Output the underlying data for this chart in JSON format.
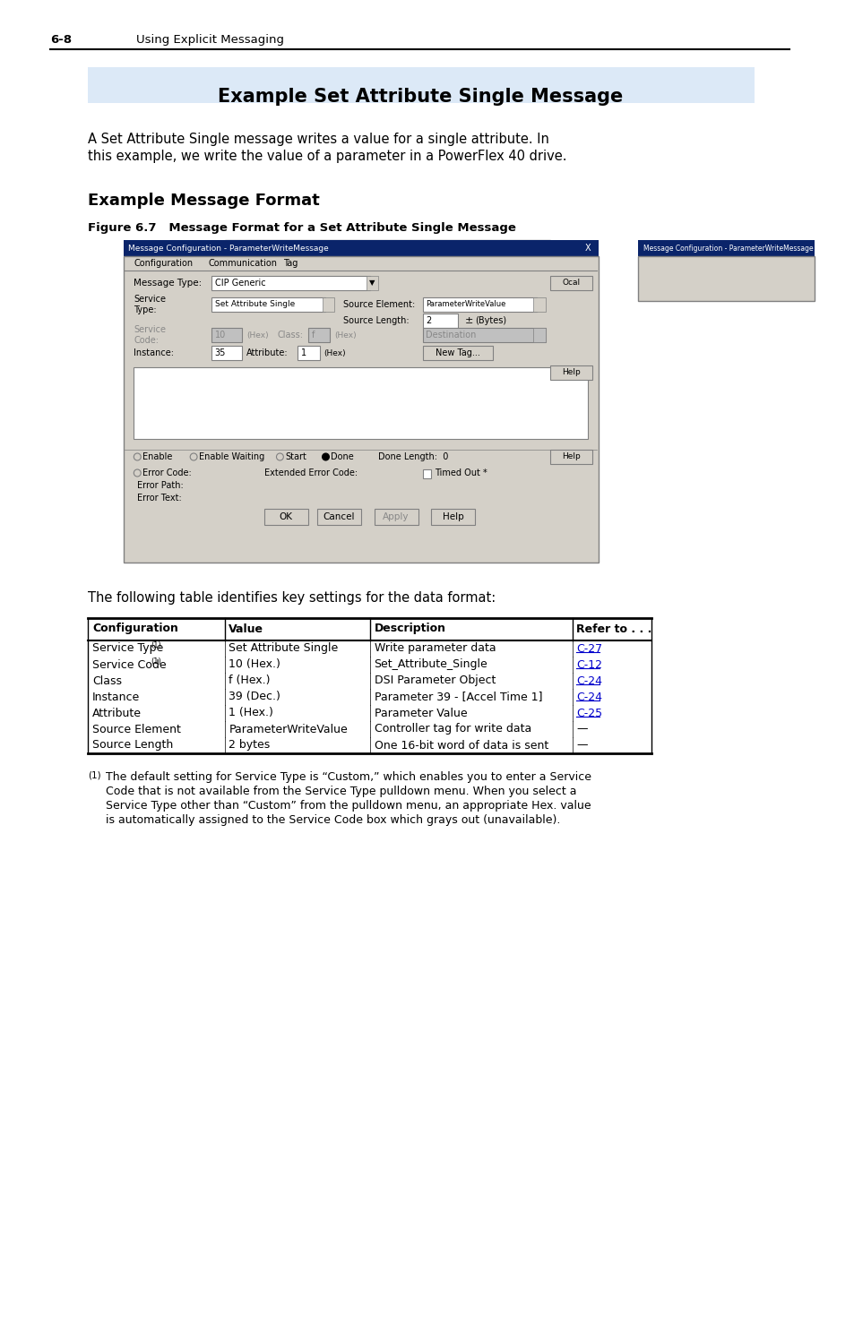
{
  "page_num": "6-8",
  "page_header": "Using Explicit Messaging",
  "section_title": "Example Set Attribute Single Message",
  "section_title_bg": "#dce9f7",
  "body_text": "A Set Attribute Single message writes a value for a single attribute. In\nthis example, we write the value of a parameter in a PowerFlex 40 drive.",
  "subsection_title": "Example Message Format",
  "figure_caption": "Figure 6.7   Message Format for a Set Attribute Single Message",
  "table_intro": "The following table identifies key settings for the data format:",
  "table_headers": [
    "Configuration",
    "Value",
    "Description",
    "Refer to . . ."
  ],
  "table_rows": [
    [
      "Service Type ¹",
      "Set Attribute Single",
      "Write parameter data",
      "C-27"
    ],
    [
      "Service Code ¹",
      "10 (Hex.)",
      "Set_Attribute_Single",
      "C-12"
    ],
    [
      "Class",
      "f (Hex.)",
      "DSI Parameter Object",
      "C-24"
    ],
    [
      "Instance",
      "39 (Dec.)",
      "Parameter 39 - [Accel Time 1]",
      "C-24"
    ],
    [
      "Attribute",
      "1 (Hex.)",
      "Parameter Value",
      "C-25"
    ],
    [
      "Source Element",
      "ParameterWriteValue",
      "Controller tag for write data",
      "—"
    ],
    [
      "Source Length",
      "2 bytes",
      "One 16-bit word of data is sent",
      "—"
    ]
  ],
  "refer_links": [
    "C-27",
    "C-12",
    "C-24",
    "C-24",
    "C-25",
    "—",
    "—"
  ],
  "footnote": "(1)  The default setting for Service Type is “Custom,” which enables you to enter a Service\n     Code that is not available from the Service Type pulldown menu. When you select a\n     Service Type other than “Custom” from the pulldown menu, an appropriate Hex. value\n     is automatically assigned to the Service Code box which grays out (unavailable).",
  "link_color": "#0000cc",
  "bg_color": "#ffffff",
  "text_color": "#000000"
}
